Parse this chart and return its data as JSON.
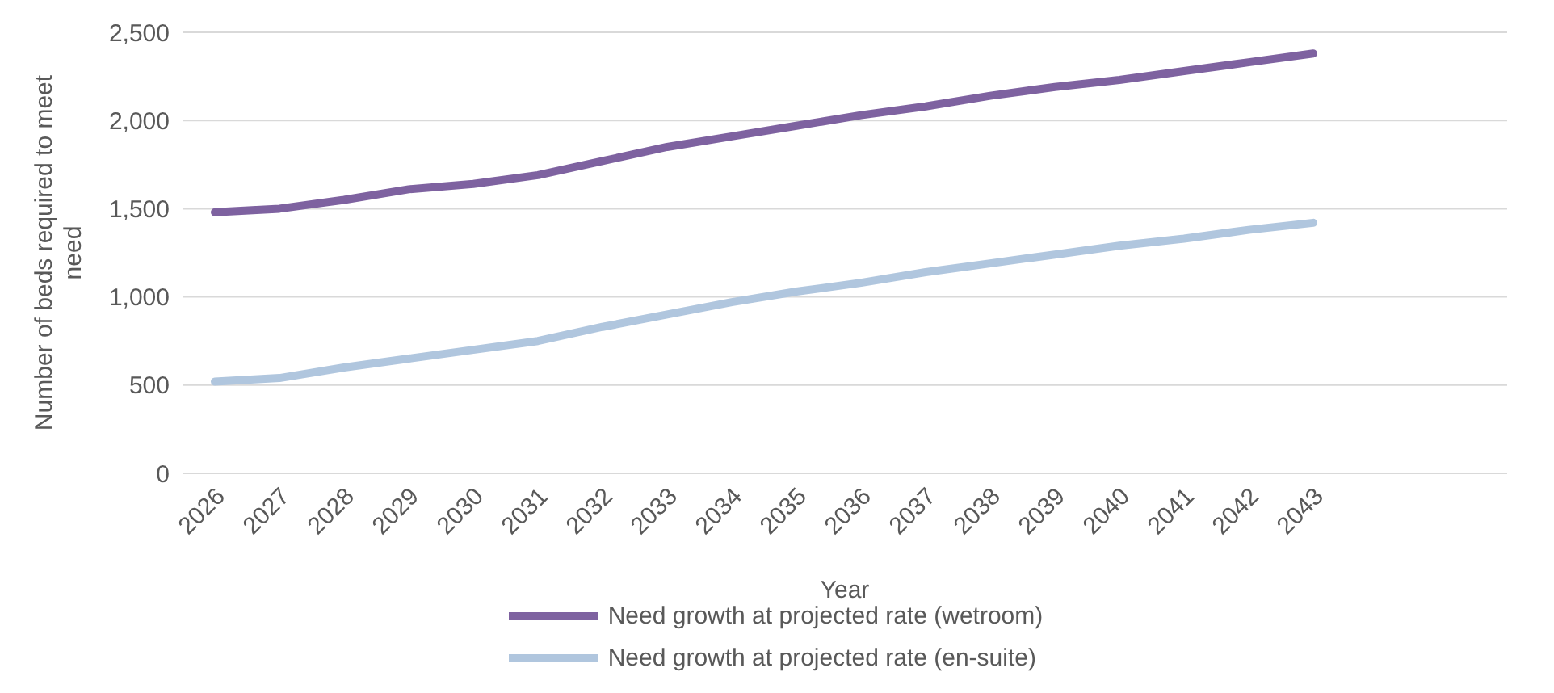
{
  "chart_data": {
    "type": "line",
    "xlabel": "Year",
    "ylabel": "Number of beds required to meet need",
    "categories": [
      "2026",
      "2027",
      "2028",
      "2029",
      "2030",
      "2031",
      "2032",
      "2033",
      "2034",
      "2035",
      "2036",
      "2037",
      "2038",
      "2039",
      "2040",
      "2041",
      "2042",
      "2043"
    ],
    "series": [
      {
        "name": "Need growth at projected rate (wetroom)",
        "color": "#7e62a0",
        "values": [
          1480,
          1500,
          1550,
          1610,
          1640,
          1690,
          1770,
          1850,
          1910,
          1970,
          2030,
          2080,
          2140,
          2190,
          2230,
          2280,
          2330,
          2380
        ]
      },
      {
        "name": "Need growth at projected rate (en-suite)",
        "color": "#b0c6de",
        "values": [
          520,
          540,
          600,
          650,
          700,
          750,
          830,
          900,
          970,
          1030,
          1080,
          1140,
          1190,
          1240,
          1290,
          1330,
          1380,
          1420
        ]
      }
    ],
    "ylim": [
      0,
      2500
    ],
    "yticks": [
      {
        "value": 0,
        "label": "0"
      },
      {
        "value": 500,
        "label": "500"
      },
      {
        "value": 1000,
        "label": "1,000"
      },
      {
        "value": 1500,
        "label": "1,500"
      },
      {
        "value": 2000,
        "label": "2,000"
      },
      {
        "value": 2500,
        "label": "2,500"
      }
    ],
    "grid": "y",
    "legend": "bottom",
    "marker": "none",
    "line_style": "solid"
  }
}
